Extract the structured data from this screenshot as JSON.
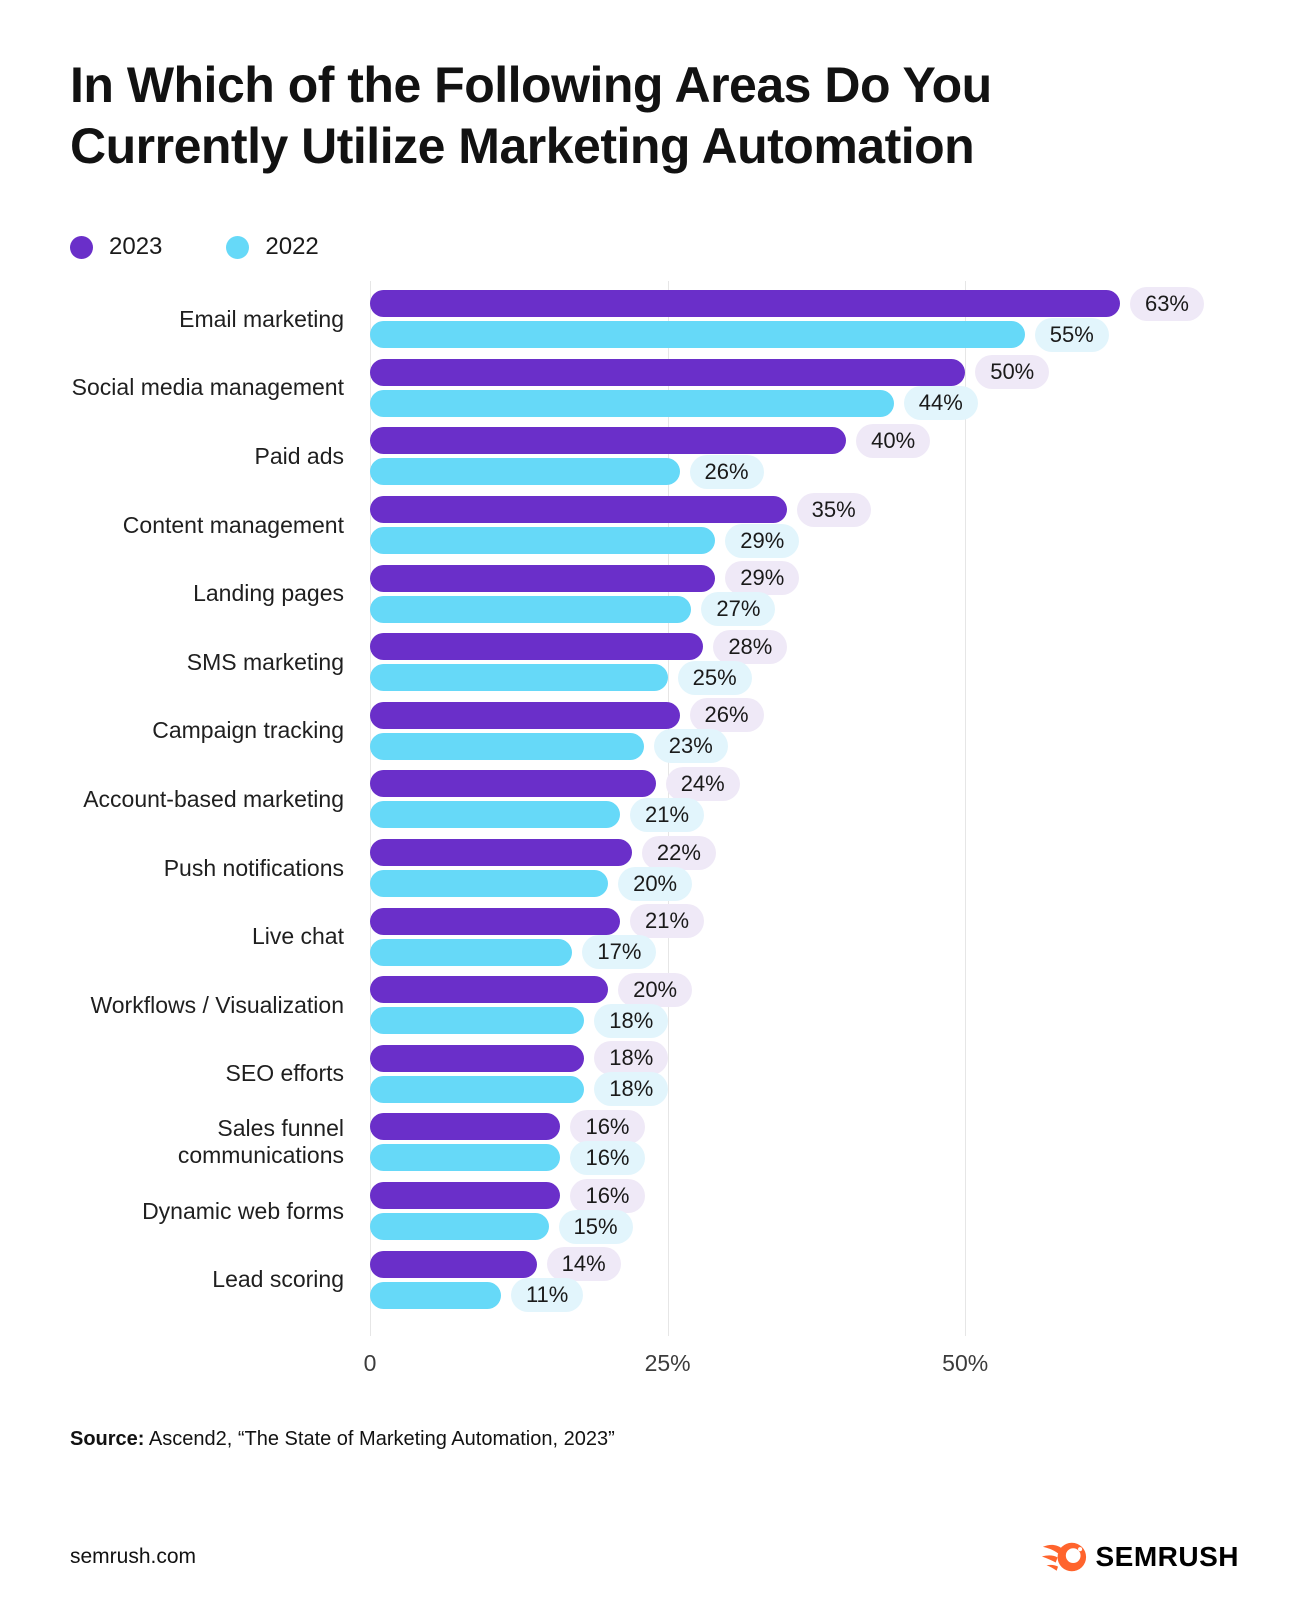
{
  "title": "In Which of the Following Areas Do You\nCurrently Utilize Marketing Automation",
  "legend": [
    {
      "label": "2023",
      "color": "#6a2fc9"
    },
    {
      "label": "2022",
      "color": "#66d9f8"
    }
  ],
  "chart_data": {
    "type": "bar",
    "orientation": "horizontal",
    "title": "In Which of the Following Areas Do You Currently Utilize Marketing Automation",
    "categories": [
      "Email marketing",
      "Social media management",
      "Paid ads",
      "Content management",
      "Landing pages",
      "SMS marketing",
      "Campaign tracking",
      "Account-based marketing",
      "Push notifications",
      "Live chat",
      "Workflows / Visualization",
      "SEO efforts",
      "Sales funnel communications",
      "Dynamic web forms",
      "Lead scoring"
    ],
    "series": [
      {
        "name": "2023",
        "color": "#6a2fc9",
        "pill_color": "#efe9f7",
        "values": [
          63,
          50,
          40,
          35,
          29,
          28,
          26,
          24,
          22,
          21,
          20,
          18,
          16,
          16,
          14
        ]
      },
      {
        "name": "2022",
        "color": "#66d9f8",
        "pill_color": "#e2f5fc",
        "values": [
          55,
          44,
          26,
          29,
          27,
          25,
          23,
          21,
          20,
          17,
          18,
          18,
          16,
          15,
          11
        ]
      }
    ],
    "value_suffix": "%",
    "xlabel": "",
    "ylabel": "",
    "x_ticks": [
      "0",
      "25%",
      "50%"
    ],
    "x_tick_values": [
      0,
      25,
      50
    ],
    "xlim": [
      0,
      73
    ],
    "grid": "vertical",
    "legend_position": "top-left"
  },
  "source": {
    "prefix": "Source:",
    "text": " Ascend2, “The State of Marketing Automation, 2023”"
  },
  "footer": {
    "site": "semrush.com",
    "brand": "SEMRUSH",
    "brand_color": "#ff642d",
    "logo_icon": "semrush-comet-icon"
  }
}
